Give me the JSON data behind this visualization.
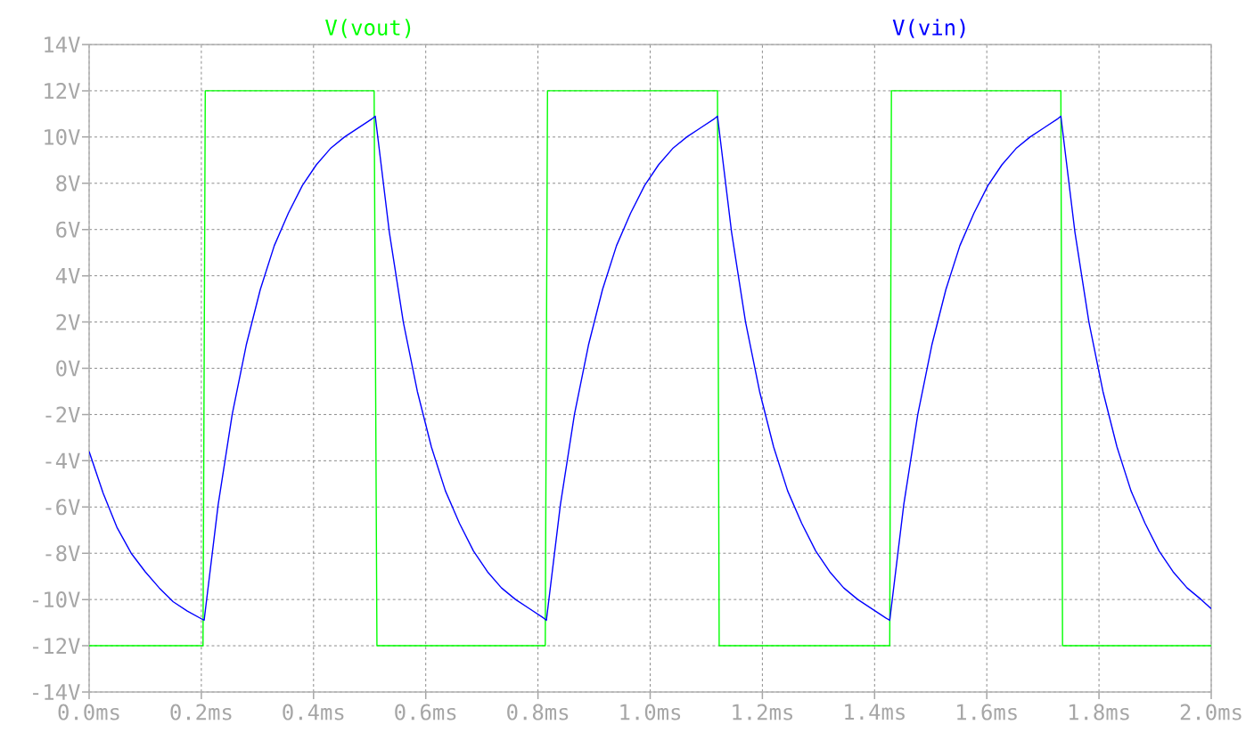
{
  "chart_data": {
    "type": "line",
    "series": [
      {
        "name": "V(vout)",
        "color": "#00ff00",
        "x": [
          0,
          0.203,
          0.207,
          0.508,
          0.513,
          0.813,
          0.817,
          1.12,
          1.123,
          1.427,
          1.43,
          1.732,
          1.735,
          2.0
        ],
        "values": [
          -12,
          -12,
          12,
          12,
          -12,
          -12,
          12,
          12,
          -12,
          -12,
          12,
          12,
          -12,
          -12
        ]
      },
      {
        "name": "V(vin)",
        "color": "#0000ff",
        "x": [
          0,
          0.025,
          0.05,
          0.075,
          0.1,
          0.125,
          0.15,
          0.175,
          0.205,
          0.23,
          0.255,
          0.28,
          0.305,
          0.33,
          0.355,
          0.38,
          0.405,
          0.43,
          0.455,
          0.48,
          0.505,
          0.51,
          0.535,
          0.56,
          0.585,
          0.61,
          0.635,
          0.66,
          0.685,
          0.71,
          0.735,
          0.76,
          0.785,
          0.81,
          0.815,
          0.84,
          0.865,
          0.89,
          0.915,
          0.94,
          0.965,
          0.99,
          1.015,
          1.04,
          1.065,
          1.09,
          1.115,
          1.12,
          1.145,
          1.17,
          1.195,
          1.22,
          1.245,
          1.27,
          1.295,
          1.32,
          1.345,
          1.37,
          1.395,
          1.42,
          1.427,
          1.452,
          1.477,
          1.502,
          1.527,
          1.552,
          1.577,
          1.602,
          1.627,
          1.652,
          1.677,
          1.702,
          1.727,
          1.732,
          1.757,
          1.782,
          1.807,
          1.832,
          1.857,
          1.882,
          1.907,
          1.932,
          1.957,
          1.982,
          2.0
        ],
        "values": [
          -3.6,
          -5.4,
          -6.9,
          -8.0,
          -8.8,
          -9.5,
          -10.1,
          -10.5,
          -10.9,
          -5.9,
          -2.0,
          1.0,
          3.4,
          5.3,
          6.7,
          7.9,
          8.8,
          9.5,
          10.0,
          10.4,
          10.8,
          10.9,
          5.9,
          2.0,
          -1.0,
          -3.4,
          -5.3,
          -6.7,
          -7.9,
          -8.8,
          -9.5,
          -10.0,
          -10.4,
          -10.8,
          -10.9,
          -5.9,
          -2.0,
          1.0,
          3.4,
          5.3,
          6.7,
          7.9,
          8.8,
          9.5,
          10.0,
          10.4,
          10.8,
          10.9,
          5.9,
          2.0,
          -1.0,
          -3.4,
          -5.3,
          -6.7,
          -7.9,
          -8.8,
          -9.5,
          -10.0,
          -10.4,
          -10.8,
          -10.9,
          -5.9,
          -2.0,
          1.0,
          3.4,
          5.3,
          6.7,
          7.9,
          8.8,
          9.5,
          10.0,
          10.4,
          10.8,
          10.9,
          5.9,
          2.0,
          -1.0,
          -3.4,
          -5.3,
          -6.7,
          -7.9,
          -8.8,
          -9.5,
          -10.0,
          -10.4
        ]
      }
    ],
    "xlim": [
      0,
      2.0
    ],
    "ylim": [
      -14,
      14
    ],
    "xticks": [
      {
        "value": 0,
        "label": "0.0ms"
      },
      {
        "value": 0.2,
        "label": "0.2ms"
      },
      {
        "value": 0.4,
        "label": "0.4ms"
      },
      {
        "value": 0.6,
        "label": "0.6ms"
      },
      {
        "value": 0.8,
        "label": "0.8ms"
      },
      {
        "value": 1.0,
        "label": "1.0ms"
      },
      {
        "value": 1.2,
        "label": "1.2ms"
      },
      {
        "value": 1.4,
        "label": "1.4ms"
      },
      {
        "value": 1.6,
        "label": "1.6ms"
      },
      {
        "value": 1.8,
        "label": "1.8ms"
      },
      {
        "value": 2.0,
        "label": "2.0ms"
      }
    ],
    "yticks": [
      {
        "value": -14,
        "label": "-14V"
      },
      {
        "value": -12,
        "label": "-12V"
      },
      {
        "value": -10,
        "label": "-10V"
      },
      {
        "value": -8,
        "label": "-8V"
      },
      {
        "value": -6,
        "label": "-6V"
      },
      {
        "value": -4,
        "label": "-4V"
      },
      {
        "value": -2,
        "label": "-2V"
      },
      {
        "value": 0,
        "label": "0V"
      },
      {
        "value": 2,
        "label": "2V"
      },
      {
        "value": 4,
        "label": "4V"
      },
      {
        "value": 6,
        "label": "6V"
      },
      {
        "value": 8,
        "label": "8V"
      },
      {
        "value": 10,
        "label": "10V"
      },
      {
        "value": 12,
        "label": "12V"
      },
      {
        "value": 14,
        "label": "14V"
      }
    ],
    "grid": true,
    "legend": "top",
    "marker": "none",
    "line_style": "solid"
  }
}
